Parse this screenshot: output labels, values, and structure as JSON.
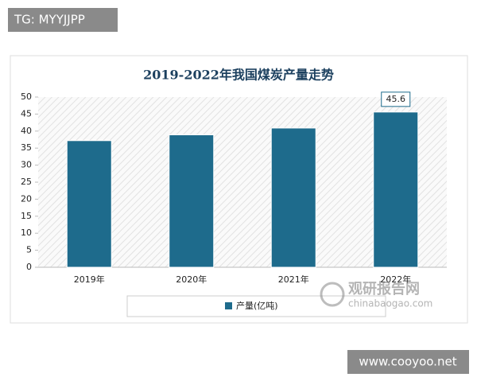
{
  "chart_data": {
    "type": "bar",
    "title": "2019-2022年我国煤炭产量走势",
    "categories": [
      "2019年",
      "2020年",
      "2021年",
      "2022年"
    ],
    "series": [
      {
        "name": "产量(亿吨)",
        "color": "#1e6b8c",
        "values": [
          37.2,
          38.9,
          40.9,
          45.6
        ]
      }
    ],
    "show_value_label": [
      false,
      false,
      false,
      true
    ],
    "ylim": [
      0,
      50
    ],
    "yticks": [
      0,
      5,
      10,
      15,
      20,
      25,
      30,
      35,
      40,
      45,
      50
    ],
    "grid": false
  },
  "watermarks": {
    "top_left": "TG: MYYJJPP",
    "bottom_right": "www.cooyoo.net",
    "logo_cn": "观研报告网",
    "logo_en": "chinabaogao.com"
  }
}
